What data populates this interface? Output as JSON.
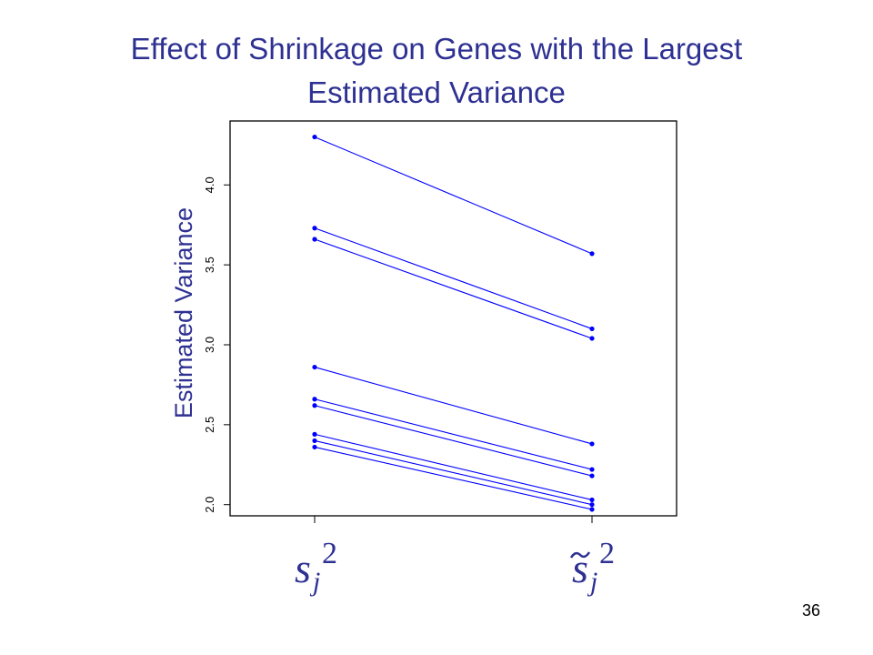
{
  "slide": {
    "title_line1": "Effect of Shrinkage on Genes with the Largest",
    "title_line2": "Estimated Variance",
    "page_number": "36",
    "title_color": "#2e3192"
  },
  "chart_data": {
    "type": "line",
    "title": "Effect of Shrinkage on Genes with the Largest Estimated Variance",
    "ylabel": "Estimated Variance",
    "xlabel": "",
    "categories": [
      {
        "base": "s",
        "tilde": false,
        "sup": "2",
        "sub": "j"
      },
      {
        "base": "s",
        "tilde": true,
        "sup": "2",
        "sub": "j"
      }
    ],
    "ylim": [
      1.93,
      4.4
    ],
    "yticks": [
      "2.0",
      "2.5",
      "3.0",
      "3.5",
      "4.0"
    ],
    "grid": false,
    "legend": "none",
    "series_color": "#0000ff",
    "ylabel_color": "#2e3192",
    "math_color": "#2e3192",
    "series": [
      {
        "values": [
          4.3,
          3.57
        ]
      },
      {
        "values": [
          3.73,
          3.1
        ]
      },
      {
        "values": [
          3.66,
          3.04
        ]
      },
      {
        "values": [
          2.86,
          2.38
        ]
      },
      {
        "values": [
          2.66,
          2.22
        ]
      },
      {
        "values": [
          2.62,
          2.18
        ]
      },
      {
        "values": [
          2.44,
          2.03
        ]
      },
      {
        "values": [
          2.4,
          2.0
        ]
      },
      {
        "values": [
          2.36,
          1.97
        ]
      }
    ]
  }
}
